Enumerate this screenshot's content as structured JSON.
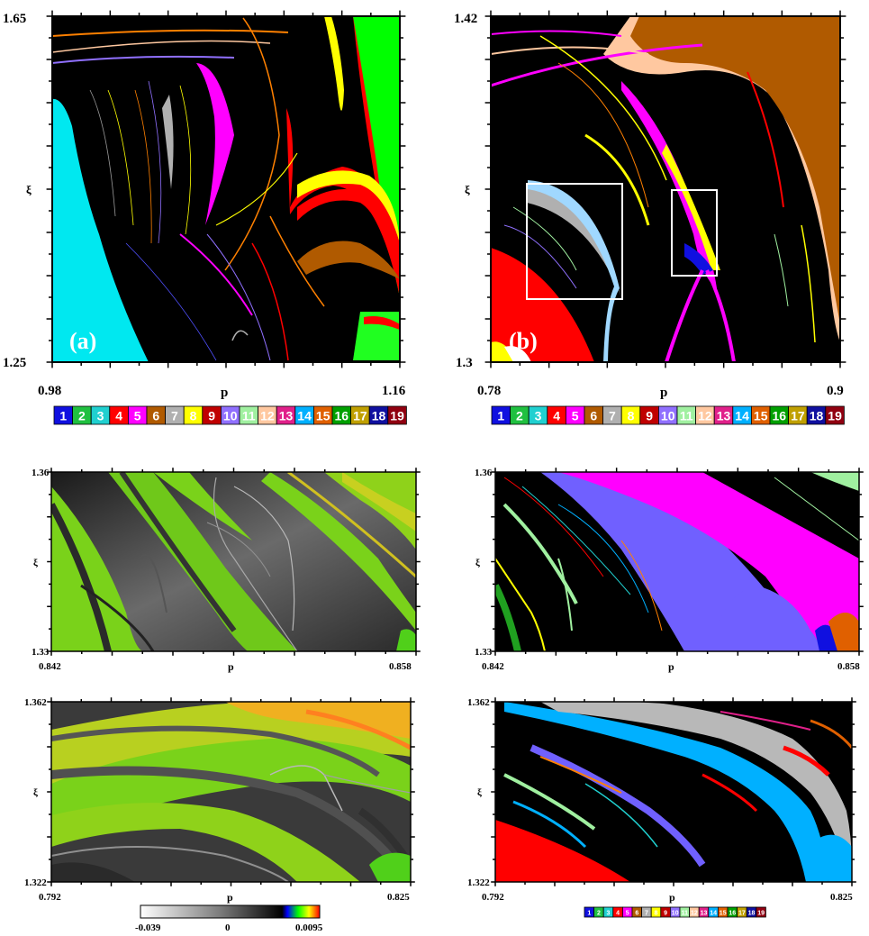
{
  "period_colors": [
    "#1010e0",
    "#20c040",
    "#20d0d0",
    "#ff0000",
    "#ff00ff",
    "#b05a00",
    "#b0b0b0",
    "#ffff00",
    "#c00000",
    "#9070ff",
    "#a0f0a0",
    "#ffc8a0",
    "#e0208a",
    "#00b0ff",
    "#e06000",
    "#00a000",
    "#c0a000",
    "#1010a0",
    "#900010"
  ],
  "period_labels": [
    "1",
    "2",
    "3",
    "4",
    "5",
    "6",
    "7",
    "8",
    "9",
    "10",
    "11",
    "12",
    "13",
    "14",
    "15",
    "16",
    "17",
    "18",
    "19"
  ],
  "lyapunov_colorbar": {
    "ticks": [
      "-0.039",
      "0",
      "0.0095"
    ],
    "range": [
      -0.039,
      0.0095
    ],
    "colors": [
      "#ffffff",
      "#808080",
      "#000000",
      "#0000ff",
      "#00ff00",
      "#ffff00",
      "#ff0000"
    ]
  },
  "panels": [
    {
      "id": "a",
      "letter": "(a)",
      "xlabel": "p",
      "ylabel": "ξ",
      "xticks": [
        "0.98",
        "p",
        "1.16"
      ],
      "yticks": [
        "1.65",
        "ξ",
        "1.25"
      ],
      "xlim": [
        0.98,
        1.16
      ],
      "ylim": [
        1.25,
        1.65
      ],
      "kind": "period"
    },
    {
      "id": "b",
      "letter": "(b)",
      "xlabel": "p",
      "ylabel": "ξ",
      "xticks": [
        "0.78",
        "p",
        "0.9"
      ],
      "yticks": [
        "1.42",
        "ξ",
        "1.3"
      ],
      "xlim": [
        0.78,
        0.9
      ],
      "ylim": [
        1.3,
        1.42
      ],
      "kind": "period"
    },
    {
      "id": "c",
      "letter": "",
      "xlabel": "p",
      "ylabel": "ξ",
      "xticks": [
        "0.842",
        "p",
        "0.858"
      ],
      "yticks": [
        "1.36",
        "ξ",
        "1.33"
      ],
      "xlim": [
        0.842,
        0.858
      ],
      "ylim": [
        1.33,
        1.36
      ],
      "kind": "lyapunov"
    },
    {
      "id": "d",
      "letter": "",
      "xlabel": "p",
      "ylabel": "ξ",
      "xticks": [
        "0.842",
        "p",
        "0.858"
      ],
      "yticks": [
        "1.36",
        "ξ",
        "1.33"
      ],
      "xlim": [
        0.842,
        0.858
      ],
      "ylim": [
        1.33,
        1.36
      ],
      "kind": "period"
    },
    {
      "id": "e",
      "letter": "",
      "xlabel": "p",
      "ylabel": "ξ",
      "xticks": [
        "0.792",
        "p",
        "0.825"
      ],
      "yticks": [
        "1.362",
        "ξ",
        "1.322"
      ],
      "xlim": [
        0.792,
        0.825
      ],
      "ylim": [
        1.322,
        1.362
      ],
      "kind": "lyapunov"
    },
    {
      "id": "f",
      "letter": "",
      "xlabel": "p",
      "ylabel": "ξ",
      "xticks": [
        "0.792",
        "p",
        "0.825"
      ],
      "yticks": [
        "1.362",
        "ξ",
        "1.322"
      ],
      "xlim": [
        0.792,
        0.825
      ],
      "ylim": [
        1.322,
        1.362
      ],
      "kind": "period"
    }
  ],
  "chart_data": [
    {
      "type": "heatmap",
      "title": "",
      "letter": "(a)",
      "xlabel": "p",
      "ylabel": "ξ",
      "xlim": [
        0.98,
        1.16
      ],
      "ylim": [
        1.25,
        1.65
      ],
      "x_ticks": [
        "0.98",
        "1.16"
      ],
      "y_ticks": [
        "1.65",
        "1.25"
      ],
      "color_encoding": "period",
      "legend": [
        "1",
        "2",
        "3",
        "4",
        "5",
        "6",
        "7",
        "8",
        "9",
        "10",
        "11",
        "12",
        "13",
        "14",
        "15",
        "16",
        "17",
        "18",
        "19"
      ]
    },
    {
      "type": "heatmap",
      "title": "",
      "letter": "(b)",
      "xlabel": "p",
      "ylabel": "ξ",
      "xlim": [
        0.78,
        0.9
      ],
      "ylim": [
        1.3,
        1.42
      ],
      "x_ticks": [
        "0.78",
        "0.9"
      ],
      "y_ticks": [
        "1.42",
        "1.3"
      ],
      "color_encoding": "period",
      "legend": [
        "1",
        "2",
        "3",
        "4",
        "5",
        "6",
        "7",
        "8",
        "9",
        "10",
        "11",
        "12",
        "13",
        "14",
        "15",
        "16",
        "17",
        "18",
        "19"
      ]
    },
    {
      "type": "heatmap",
      "title": "",
      "xlabel": "p",
      "ylabel": "ξ",
      "xlim": [
        0.842,
        0.858
      ],
      "ylim": [
        1.33,
        1.36
      ],
      "x_ticks": [
        "0.842",
        "0.858"
      ],
      "y_ticks": [
        "1.36",
        "1.33"
      ],
      "color_encoding": "lyapunov"
    },
    {
      "type": "heatmap",
      "title": "",
      "xlabel": "p",
      "ylabel": "ξ",
      "xlim": [
        0.842,
        0.858
      ],
      "ylim": [
        1.33,
        1.36
      ],
      "x_ticks": [
        "0.842",
        "0.858"
      ],
      "y_ticks": [
        "1.36",
        "1.33"
      ],
      "color_encoding": "period"
    },
    {
      "type": "heatmap",
      "title": "",
      "xlabel": "p",
      "ylabel": "ξ",
      "xlim": [
        0.792,
        0.825
      ],
      "ylim": [
        1.322,
        1.362
      ],
      "x_ticks": [
        "0.792",
        "0.825"
      ],
      "y_ticks": [
        "1.362",
        "1.322"
      ],
      "color_encoding": "lyapunov",
      "colorbar": [
        "-0.039",
        "0",
        "0.0095"
      ]
    },
    {
      "type": "heatmap",
      "title": "",
      "xlabel": "p",
      "ylabel": "ξ",
      "xlim": [
        0.792,
        0.825
      ],
      "ylim": [
        1.322,
        1.362
      ],
      "x_ticks": [
        "0.792",
        "0.825"
      ],
      "y_ticks": [
        "1.362",
        "1.322"
      ],
      "color_encoding": "period",
      "legend": [
        "1",
        "2",
        "3",
        "4",
        "5",
        "6",
        "7",
        "8",
        "9",
        "10",
        "11",
        "12",
        "13",
        "14",
        "15",
        "16",
        "17",
        "18",
        "19"
      ]
    }
  ]
}
